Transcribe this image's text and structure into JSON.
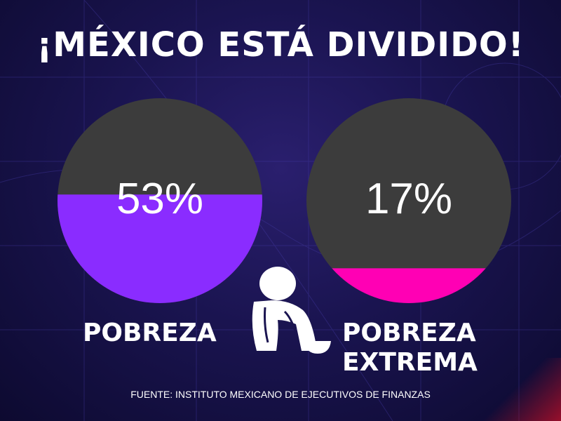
{
  "title": "¡MÉXICO ESTÁ DIVIDIDO!",
  "source": "FUENTE: INSTITUTO MEXICANO DE EJECUTIVOS DE FINANZAS",
  "colors": {
    "background": "#1a1450",
    "gauge_empty": "#3c3c3c",
    "pobreza": "#8a2cff",
    "pobreza_extrema": "#ff00b4"
  },
  "icon": "crouching-person-with-bowl-icon",
  "chart_data": [
    {
      "type": "gauge",
      "value": 53,
      "display": "53%",
      "label_lines": [
        "POBREZA"
      ],
      "fill_color": "#8a2cff",
      "empty_color": "#3c3c3c"
    },
    {
      "type": "gauge",
      "value": 17,
      "display": "17%",
      "label_lines": [
        "POBREZA",
        "EXTREMA"
      ],
      "fill_color": "#ff00b4",
      "empty_color": "#3c3c3c"
    }
  ]
}
